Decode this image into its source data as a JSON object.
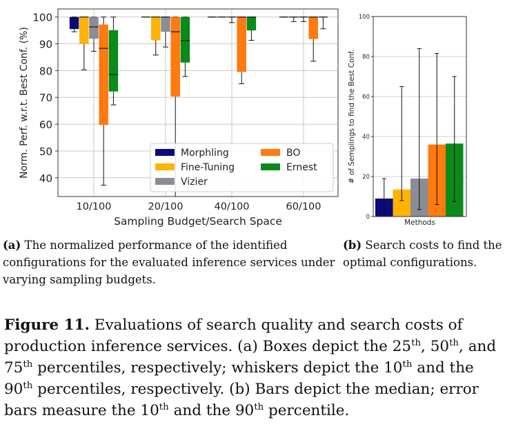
{
  "chart_data": [
    {
      "type": "box",
      "xlabel": "Sampling Budget/Search Space",
      "ylabel": "Norm. Perf. w.r.t. Best Conf. (%)",
      "ylim": [
        33,
        103
      ],
      "yticks": [
        40,
        50,
        60,
        70,
        80,
        90,
        100
      ],
      "categories": [
        "10/100",
        "20/100",
        "40/100",
        "60/100"
      ],
      "grid": true,
      "legend_position": "lower-right",
      "series": [
        {
          "name": "Morphling",
          "color": "#0a0a7a",
          "boxes": [
            {
              "whislo": 94.5,
              "q1": 95.5,
              "med": 99.5,
              "q3": 100,
              "whishi": 100
            },
            {
              "whislo": 100,
              "q1": 100,
              "med": 100,
              "q3": 100,
              "whishi": 100
            },
            {
              "whislo": 100,
              "q1": 100,
              "med": 100,
              "q3": 100,
              "whishi": 100
            },
            {
              "whislo": 100,
              "q1": 100,
              "med": 100,
              "q3": 100,
              "whishi": 100
            }
          ]
        },
        {
          "name": "Fine-Tuning",
          "color": "#ffb300",
          "boxes": [
            {
              "whislo": 80.3,
              "q1": 90,
              "med": 100,
              "q3": 100,
              "whishi": 100
            },
            {
              "whislo": 85.8,
              "q1": 91.3,
              "med": 100,
              "q3": 100,
              "whishi": 100
            },
            {
              "whislo": 100,
              "q1": 100,
              "med": 100,
              "q3": 100,
              "whishi": 100
            },
            {
              "whislo": 98.3,
              "q1": 100,
              "med": 100,
              "q3": 100,
              "whishi": 100
            }
          ]
        },
        {
          "name": "Vizier",
          "color": "#8a8d95",
          "boxes": [
            {
              "whislo": 87.2,
              "q1": 91.9,
              "med": 96.3,
              "q3": 100,
              "whishi": 100
            },
            {
              "whislo": 88.8,
              "q1": 94.5,
              "med": 100,
              "q3": 100,
              "whishi": 100
            },
            {
              "whislo": 97.9,
              "q1": 100,
              "med": 100,
              "q3": 100,
              "whishi": 100
            },
            {
              "whislo": 98.3,
              "q1": 100,
              "med": 100,
              "q3": 100,
              "whishi": 100
            }
          ]
        },
        {
          "name": "BO",
          "color": "#ff7a10",
          "boxes": [
            {
              "whislo": 37.2,
              "q1": 59.7,
              "med": 88.3,
              "q3": 97.2,
              "whishi": 100
            },
            {
              "whislo": 33,
              "q1": 70.3,
              "med": 94.5,
              "q3": 100,
              "whishi": 100
            },
            {
              "whislo": 75.1,
              "q1": 79.5,
              "med": 100,
              "q3": 100,
              "whishi": 100
            },
            {
              "whislo": 83.5,
              "q1": 91.8,
              "med": 100,
              "q3": 100,
              "whishi": 100
            }
          ]
        },
        {
          "name": "Ernest",
          "color": "#0a8a1a",
          "boxes": [
            {
              "whislo": 67.2,
              "q1": 72.2,
              "med": 78.5,
              "q3": 95.1,
              "whishi": 100
            },
            {
              "whislo": 77.8,
              "q1": 83,
              "med": 91.2,
              "q3": 100,
              "whishi": 100
            },
            {
              "whislo": 91.3,
              "q1": 95,
              "med": 100,
              "q3": 100,
              "whishi": 100
            },
            {
              "whislo": 95.6,
              "q1": 100,
              "med": 100,
              "q3": 100,
              "whishi": 100
            }
          ]
        }
      ]
    },
    {
      "type": "bar",
      "xlabel": "Methods",
      "ylabel": "# of Semplings to find the Best Conf.",
      "ylim": [
        0,
        100
      ],
      "yticks": [
        0,
        20,
        40,
        60,
        80,
        100
      ],
      "categories": [
        "Morphling",
        "Fine-Tuning",
        "Vizier",
        "BO",
        "Ernest"
      ],
      "colors": [
        "#0a0a7a",
        "#ffb300",
        "#8a8d95",
        "#ff7a10",
        "#0a8a1a"
      ],
      "values": [
        9,
        13.5,
        19,
        36,
        36.5
      ],
      "err_low": [
        0,
        8,
        3.5,
        6,
        7.5
      ],
      "err_high": [
        19,
        65,
        84,
        81.5,
        70
      ]
    }
  ],
  "captions": {
    "a_tag": "(a)",
    "a_text": " The normalized performance of the identified configurations for the evaluated inference services under varying sampling budgets.",
    "b_tag": "(b)",
    "b_text": " Search costs to find the optimal configurations.",
    "fig_label": "Figure 11.",
    "fig_text_1": " Evaluations of search quality and search costs of production inference services. (a) Boxes depict the 25",
    "sup_th": "th",
    "fig_text_2": ", 50",
    "fig_text_3": ", and 75",
    "fig_text_4": " percentiles, respectively; whiskers depict the 10",
    "fig_text_5": " and the 90",
    "fig_text_6": " percentiles, respectively. (b) Bars depict the median; error bars measure the 10",
    "fig_text_7": " and the 90",
    "fig_text_8": " percentile."
  }
}
